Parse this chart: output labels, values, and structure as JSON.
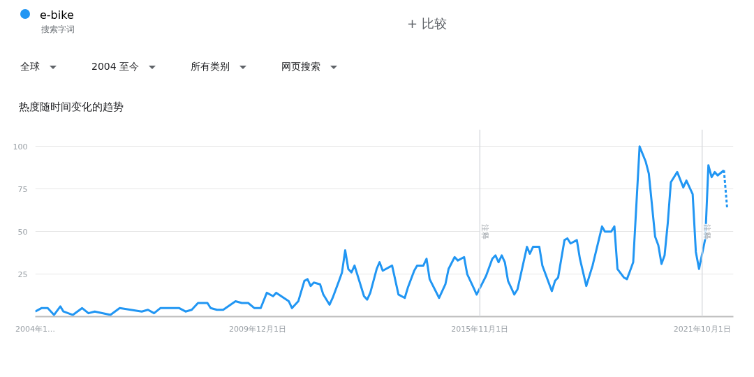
{
  "chart_data": {
    "type": "line",
    "title": "热度随时间变化的趋势",
    "annotations": [
      "搜索字词",
      "+ 比较",
      "全球",
      "2004 至今",
      "所有类别",
      "网页搜索"
    ],
    "legend": "top left",
    "grid": "y",
    "marker": "none",
    "xlim": [
      "2004-01",
      "2022-08"
    ],
    "ylim": [
      0,
      110
    ],
    "xticks": [
      {
        "value": "2004-01",
        "label": "2004年1…"
      },
      {
        "value": "2009-12-01",
        "label": "2009年12月1日"
      },
      {
        "value": "2015-11-01",
        "label": "2015年11月1日"
      },
      {
        "value": "2021-10-01",
        "label": "2021年10月1日"
      }
    ],
    "yticks": [
      25,
      50,
      75,
      100
    ],
    "ref_lines": [
      {
        "axis": "x",
        "value": "2015-11-01",
        "label": "注释",
        "color": "#dadce0"
      },
      {
        "axis": "x",
        "value": "2021-10-01",
        "label": "注释",
        "color": "#dadce0"
      }
    ],
    "series": [
      {
        "name": "e-bike",
        "color": "#2196f3",
        "line_style": "solid",
        "x": [
          "2004-01",
          "2004-03",
          "2004-05",
          "2004-07",
          "2004-09",
          "2004-10",
          "2005-01",
          "2005-04",
          "2005-06",
          "2005-08",
          "2006-01",
          "2006-04",
          "2006-11",
          "2007-01",
          "2007-03",
          "2007-05",
          "2007-06",
          "2007-11",
          "2008-01",
          "2008-03",
          "2008-05",
          "2008-08",
          "2008-09",
          "2008-11",
          "2009-01",
          "2009-05",
          "2009-07",
          "2009-09",
          "2009-11",
          "2010-01",
          "2010-03",
          "2010-05",
          "2010-06",
          "2010-10",
          "2010-11",
          "2011-01",
          "2011-03",
          "2011-04",
          "2011-05",
          "2011-06",
          "2011-08",
          "2011-09",
          "2011-11",
          "2011-12",
          "2012-02",
          "2012-03",
          "2012-04",
          "2012-05",
          "2012-06",
          "2012-07",
          "2012-10",
          "2012-11",
          "2012-12",
          "2013-02",
          "2013-03",
          "2013-04",
          "2013-07",
          "2013-09",
          "2013-11",
          "2013-12",
          "2014-02",
          "2014-03",
          "2014-05",
          "2014-06",
          "2014-07",
          "2014-10",
          "2014-12",
          "2015-01",
          "2015-03",
          "2015-04",
          "2015-06",
          "2015-07",
          "2015-09",
          "2015-10",
          "2016-01",
          "2016-03",
          "2016-04",
          "2016-05",
          "2016-06",
          "2016-07",
          "2016-08",
          "2016-10",
          "2016-11",
          "2017-02",
          "2017-03",
          "2017-04",
          "2017-06",
          "2017-07",
          "2017-10",
          "2017-11",
          "2017-12",
          "2018-02",
          "2018-03",
          "2018-04",
          "2018-06",
          "2018-07",
          "2018-09",
          "2018-11",
          "2019-02",
          "2019-03",
          "2019-05",
          "2019-06",
          "2019-07",
          "2019-09",
          "2019-10",
          "2019-11",
          "2019-12",
          "2020-02",
          "2020-04",
          "2020-05",
          "2020-07",
          "2020-08",
          "2020-09",
          "2020-10",
          "2020-11",
          "2020-12",
          "2021-02",
          "2021-04",
          "2021-05",
          "2021-07",
          "2021-08",
          "2021-09",
          "2021-11",
          "2021-12",
          "2022-01",
          "2022-02",
          "2022-03",
          "2022-05"
        ],
        "values": [
          3,
          5,
          5,
          1,
          6,
          3,
          1,
          5,
          2,
          3,
          1,
          5,
          3,
          4,
          2,
          5,
          5,
          5,
          3,
          4,
          8,
          8,
          5,
          4,
          4,
          9,
          8,
          8,
          5,
          5,
          14,
          12,
          14,
          9,
          5,
          9,
          21,
          22,
          18,
          20,
          19,
          13,
          7,
          11,
          21,
          26,
          39,
          28,
          26,
          30,
          12,
          10,
          14,
          28,
          32,
          27,
          30,
          13,
          11,
          17,
          27,
          30,
          30,
          34,
          22,
          11,
          19,
          28,
          35,
          33,
          35,
          25,
          17,
          13,
          24,
          34,
          36,
          32,
          36,
          32,
          21,
          13,
          16,
          41,
          37,
          41,
          41,
          30,
          15,
          21,
          23,
          45,
          46,
          43,
          45,
          34,
          18,
          30,
          53,
          50,
          50,
          53,
          28,
          23,
          22,
          27,
          32,
          100,
          91,
          84,
          47,
          42,
          31,
          36,
          55,
          79,
          85,
          76,
          80,
          72,
          38,
          28,
          46,
          89,
          82,
          85,
          83,
          86
        ]
      },
      {
        "color": "#2196f3",
        "line_style": "dotted",
        "x": [
          "2022-05",
          "2022-06"
        ],
        "values": [
          86,
          64
        ]
      }
    ]
  }
}
